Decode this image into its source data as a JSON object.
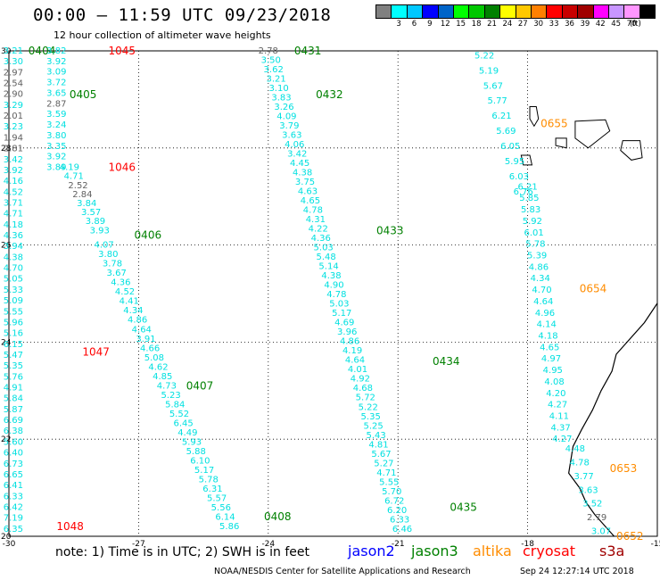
{
  "header": {
    "title": "00:00 – 11:59 UTC 09/23/2018",
    "subtitle": "12 hour collection of altimeter wave heights"
  },
  "colorbar": {
    "unit": "(ft)",
    "colors": [
      "#808080",
      "#00ffff",
      "#00c8ff",
      "#0000ff",
      "#0064c8",
      "#00ff00",
      "#00c800",
      "#008000",
      "#ffff00",
      "#ffc800",
      "#ff8000",
      "#ff0000",
      "#c80000",
      "#a00000",
      "#ff00ff",
      "#c896ff",
      "#ff96ff",
      "#000000"
    ],
    "ticks": [
      "3",
      "6",
      "9",
      "12",
      "15",
      "18",
      "21",
      "24",
      "27",
      "30",
      "33",
      "36",
      "39",
      "42",
      "45",
      "70"
    ]
  },
  "axes": {
    "lon_ticks": [
      "-30",
      "-27",
      "-24",
      "-21",
      "-18",
      "-15"
    ],
    "lat_ticks": [
      "30",
      "28",
      "26",
      "24",
      "22",
      "20"
    ],
    "lon_range": [
      -30,
      -15
    ],
    "lat_range": [
      20,
      30
    ]
  },
  "chart_data": {
    "type": "scatter",
    "value_color": "#00e0e0",
    "low_value_color": "#606060",
    "label_colors": {
      "jason3": "#008000",
      "cryosat": "#ff0000",
      "altika": "#ff8c00"
    },
    "tracks": [
      {
        "name": "0404",
        "sat": "jason3",
        "label_at": [
          -29.55,
          30.0
        ],
        "start": [
          -29.9,
          30.0
        ],
        "end": [
          -29.9,
          20.15
        ],
        "values": [
          "3.21",
          "3.30",
          "2.97",
          "2.54",
          "2.90",
          "3.29",
          "2.01",
          "3.23",
          "1.94",
          "2.81",
          "3.42",
          "3.92",
          "4.16",
          "4.52",
          "3.71",
          "4.71",
          "4.18",
          "4.36",
          "3.94",
          "4.38",
          "4.70",
          "5.05",
          "5.33",
          "5.09",
          "5.55",
          "5.96",
          "5.16",
          "6.15",
          "5.47",
          "5.35",
          "5.76",
          "4.91",
          "5.84",
          "5.87",
          "6.69",
          "6.38",
          "5.60",
          "6.40",
          "6.73",
          "6.65",
          "6.41",
          "6.33",
          "6.42",
          "7.19",
          "6.35"
        ]
      },
      {
        "name": "0405",
        "sat": "jason3",
        "label_at": [
          -28.6,
          29.1
        ],
        "start": [
          -28.9,
          30.0
        ],
        "end": [
          -28.9,
          27.6
        ],
        "values": [
          "3.82",
          "3.92",
          "3.09",
          "3.72",
          "3.65",
          "2.87",
          "3.59",
          "3.24",
          "3.80",
          "3.35",
          "3.92",
          "3.89"
        ]
      },
      {
        "name": "1045",
        "sat": "cryosat",
        "label_at": [
          -27.7,
          30.0
        ]
      },
      {
        "name": "1046",
        "sat": "cryosat",
        "label_at": [
          -27.7,
          27.6
        ]
      },
      {
        "name": "1047",
        "sat": "cryosat",
        "label_at": [
          -28.3,
          23.8
        ]
      },
      {
        "name": "1048",
        "sat": "cryosat",
        "label_at": [
          -28.9,
          20.2
        ]
      },
      {
        "name": "0406",
        "sat": "jason3",
        "label_at": [
          -27.1,
          26.2
        ],
        "start": [
          -28.6,
          27.6
        ],
        "end": [
          -27.9,
          26.3
        ],
        "values": [
          "4.19",
          "4.71",
          "2.52",
          "2.84",
          "3.84",
          "3.57",
          "3.89",
          "3.93"
        ]
      },
      {
        "name": "0407",
        "sat": "jason3",
        "label_at": [
          -25.9,
          23.1
        ],
        "start": [
          -27.8,
          26.0
        ],
        "end": [
          -24.9,
          20.2
        ],
        "values": [
          "4.07",
          "3.80",
          "3.78",
          "3.67",
          "4.36",
          "4.52",
          "4.41",
          "4.34",
          "4.86",
          "4.64",
          "3.91",
          "4.66",
          "5.08",
          "4.62",
          "4.85",
          "4.73",
          "5.23",
          "5.84",
          "5.52",
          "6.45",
          "4.49",
          "5.93",
          "5.88",
          "6.10",
          "5.17",
          "5.78",
          "6.31",
          "5.57",
          "5.56",
          "6.14",
          "5.86"
        ]
      },
      {
        "name": "0408",
        "sat": "jason3",
        "label_at": [
          -24.1,
          20.4
        ]
      },
      {
        "name": "0431",
        "sat": "jason3",
        "label_at": [
          -23.4,
          30.0
        ],
        "start": [
          -24.0,
          30.0
        ],
        "end": [
          -20.9,
          20.15
        ],
        "values": [
          "2.78",
          "3.50",
          "3.62",
          "3.21",
          "3.10",
          "3.83",
          "3.26",
          "4.09",
          "3.79",
          "3.63",
          "4.06",
          "3.42",
          "4.45",
          "4.38",
          "3.75",
          "4.63",
          "4.65",
          "4.78",
          "4.31",
          "4.22",
          "4.36",
          "5.03",
          "5.48",
          "5.14",
          "4.38",
          "4.90",
          "4.78",
          "5.03",
          "5.17",
          "4.69",
          "3.96",
          "4.86",
          "4.19",
          "4.64",
          "4.01",
          "4.92",
          "4.68",
          "5.72",
          "5.22",
          "5.35",
          "5.25",
          "5.43",
          "4.81",
          "5.67",
          "5.27",
          "4.71",
          "5.55",
          "5.70",
          "6.72",
          "6.20",
          "6.33",
          "6.46"
        ]
      },
      {
        "name": "0432",
        "sat": "jason3",
        "label_at": [
          -22.9,
          29.1
        ]
      },
      {
        "name": "0433",
        "sat": "jason3",
        "label_at": [
          -21.5,
          26.3
        ]
      },
      {
        "name": "0434",
        "sat": "jason3",
        "label_at": [
          -20.2,
          23.6
        ]
      },
      {
        "name": "0435",
        "sat": "jason3",
        "label_at": [
          -19.8,
          20.6
        ]
      },
      {
        "name": "0655",
        "sat": "altika",
        "label_at": [
          -17.7,
          28.5
        ],
        "start": [
          -19.0,
          29.9
        ],
        "end": [
          -18.1,
          27.1
        ],
        "values": [
          "5.22",
          "5.19",
          "5.67",
          "5.77",
          "6.21",
          "5.69",
          "6.05",
          "5.95",
          "6.03",
          "6.76"
        ]
      },
      {
        "name": "0654",
        "sat": "altika",
        "label_at": [
          -16.8,
          25.1
        ],
        "start": [
          -18.0,
          27.2
        ],
        "end": [
          -17.2,
          22.0
        ],
        "values": [
          "6.21",
          "5.85",
          "5.83",
          "5.92",
          "6.01",
          "5.78",
          "5.39",
          "4.86",
          "4.34",
          "4.70",
          "4.64",
          "4.96",
          "4.14",
          "4.18",
          "4.65",
          "4.97",
          "4.95",
          "4.08",
          "4.20",
          "4.27",
          "4.11",
          "4.37",
          "4.27"
        ]
      },
      {
        "name": "0653",
        "sat": "altika",
        "label_at": [
          -16.1,
          21.4
        ],
        "start": [
          -16.9,
          21.8
        ],
        "end": [
          -16.3,
          20.1
        ],
        "values": [
          "4.48",
          "4.78",
          "3.77",
          "3.63",
          "3.52",
          "2.79",
          "3.07"
        ]
      },
      {
        "name": "0652",
        "sat": "altika",
        "label_at": [
          -15.95,
          20.0
        ]
      }
    ]
  },
  "legend": {
    "note": "note: 1) Time is in UTC; 2) SWH is in feet",
    "items": [
      {
        "name": "jason2",
        "color": "#0000ff"
      },
      {
        "name": "jason3",
        "color": "#008000"
      },
      {
        "name": "altika",
        "color": "#ff8c00"
      },
      {
        "name": "cryosat",
        "color": "#ff0000"
      },
      {
        "name": "s3a",
        "color": "#a00000"
      }
    ]
  },
  "footer": {
    "credit": "NOAA/NESDIS Center for Satellite Applications and Research",
    "timestamp": "Sep 24 12:27:14 UTC 2018"
  }
}
